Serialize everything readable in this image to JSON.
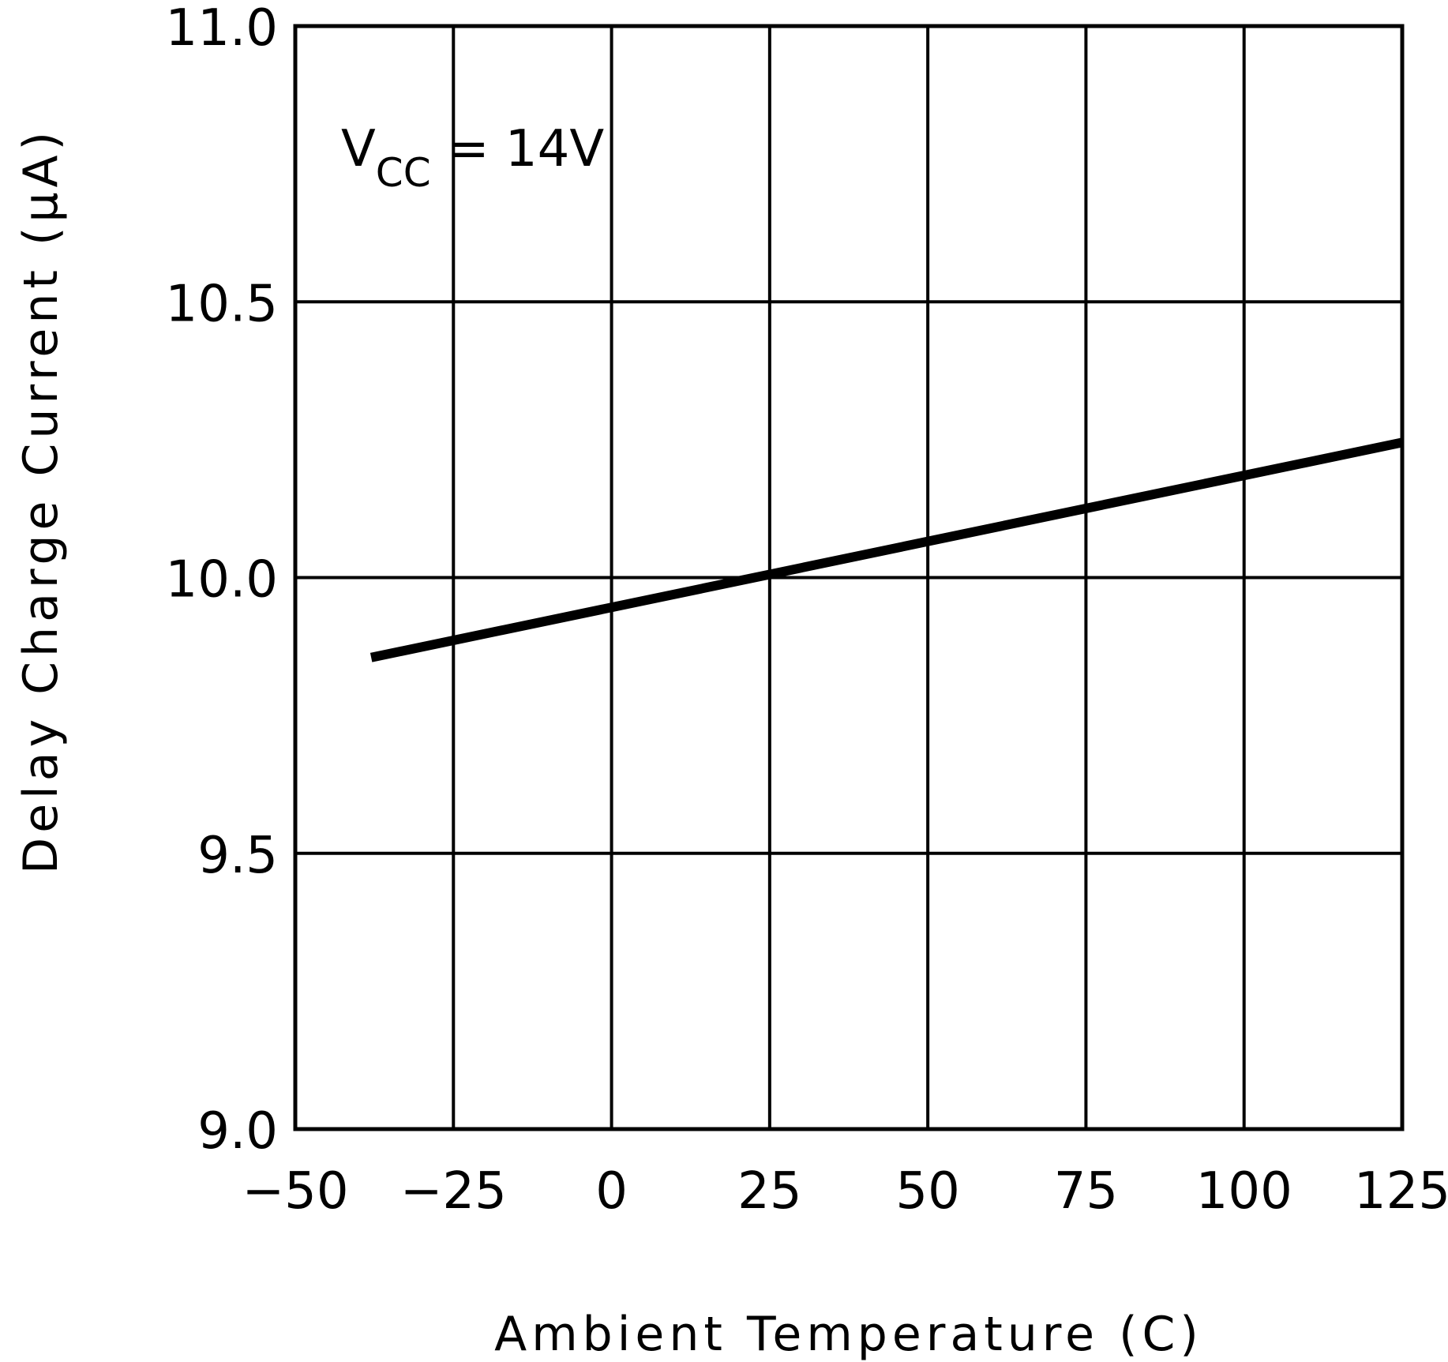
{
  "chart_data": {
    "type": "line",
    "title": "",
    "xlabel": "Ambient Temperature (C)",
    "ylabel": "Delay Charge Current (μA)",
    "xlim": [
      -50,
      125
    ],
    "ylim": [
      9.0,
      11.0
    ],
    "x_ticks": [
      -50,
      -25,
      0,
      25,
      50,
      75,
      100,
      125
    ],
    "x_tick_labels": [
      "−50",
      "−25",
      "0",
      "25",
      "50",
      "75",
      "100",
      "125"
    ],
    "y_ticks": [
      9.0,
      9.5,
      10.0,
      10.5,
      11.0
    ],
    "y_tick_labels": [
      "9.0",
      "9.5",
      "10.0",
      "10.5",
      "11.0"
    ],
    "grid": true,
    "annotation": {
      "main": "V",
      "subscript": "CC",
      "rest": " = 14V"
    },
    "series": [
      {
        "name": "VCC = 14V",
        "x": [
          -38,
          125
        ],
        "y": [
          9.855,
          10.245
        ]
      }
    ],
    "colors": {
      "line": "#000000",
      "grid": "#000000",
      "background": "#ffffff"
    }
  }
}
